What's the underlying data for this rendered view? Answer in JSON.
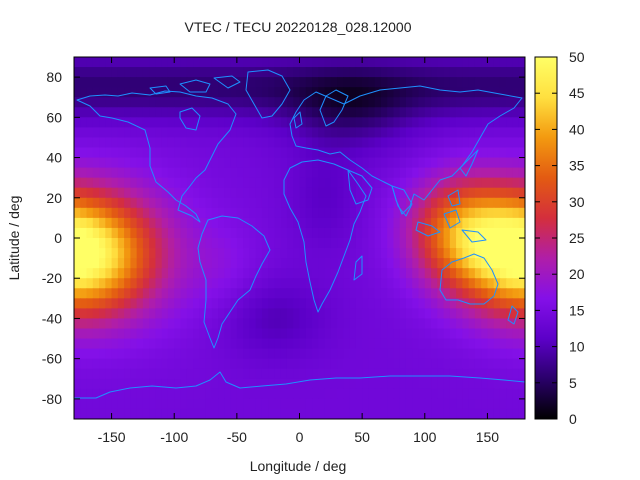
{
  "chart_data": {
    "type": "heatmap",
    "title": "VTEC / TECU 20220128_028.12000",
    "xlabel": "Longitude / deg",
    "ylabel": "Latitude / deg",
    "xlim": [
      -180,
      180
    ],
    "ylim": [
      -90,
      90
    ],
    "x_ticks": [
      "-150",
      "-100",
      "-50",
      "0",
      "50",
      "100",
      "150"
    ],
    "x_tick_values": [
      -150,
      -100,
      -50,
      0,
      50,
      100,
      150
    ],
    "y_ticks": [
      "80",
      "60",
      "40",
      "20",
      "0",
      "-20",
      "-40",
      "-60",
      "-80"
    ],
    "y_tick_values": [
      80,
      60,
      40,
      20,
      0,
      -20,
      -40,
      -60,
      -80
    ],
    "colorbar": {
      "range": [
        0,
        50
      ],
      "ticks": [
        "50",
        "45",
        "40",
        "35",
        "30",
        "25",
        "20",
        "15",
        "10",
        "5",
        "0"
      ],
      "tick_values": [
        50,
        45,
        40,
        35,
        30,
        25,
        20,
        15,
        10,
        5,
        0
      ],
      "colormap": [
        "#000000",
        "#2a006a",
        "#5c00c8",
        "#8410e8",
        "#b01ea8",
        "#d42f3c",
        "#e35b12",
        "#f39a10",
        "#ffe040",
        "#ffff66"
      ]
    },
    "grid": false,
    "coastline_color": "#1e90ff",
    "features": [
      {
        "name": "pacific-max",
        "lon": -170,
        "lat": -8,
        "value": 47
      },
      {
        "name": "west-pacific-max",
        "lon": 172,
        "lat": -8,
        "value": 45
      },
      {
        "name": "asia-band",
        "lon": 130,
        "lat": 8,
        "value": 32
      },
      {
        "name": "north-atlantic-low",
        "lon": -30,
        "lat": 70,
        "value": 5
      },
      {
        "name": "siberia-low",
        "lon": 60,
        "lat": 72,
        "value": 3
      },
      {
        "name": "south-atlantic-low",
        "lon": -10,
        "lat": -42,
        "value": 11
      }
    ]
  }
}
